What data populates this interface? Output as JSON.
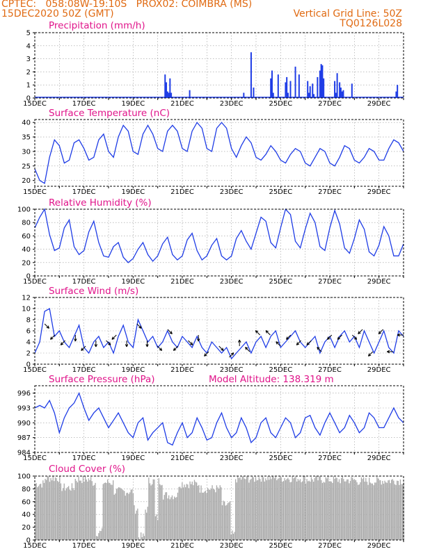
{
  "header": {
    "line1_left": "CPTEC:   058:08W-19:10S   PROX02: COIMBRA (MS)",
    "line2_left": "15DEC2020 50Z (GMT)",
    "line2_right": "Vertical Grid Line: 50Z",
    "line3_right": "TQ0126L028"
  },
  "colors": {
    "header": "#e06a12",
    "title": "#e0148a",
    "line": "#1e3ce6",
    "bars": "#1e3ce6",
    "cloud": "#a9a9a9"
  },
  "chart_data": [
    {
      "id": "precip",
      "type": "bar",
      "title": "Precipitation (mm/h)",
      "ylim": [
        0,
        5
      ],
      "yticks": [
        "0",
        "1",
        "2",
        "3",
        "4",
        "5"
      ],
      "xticks": [
        "15DEC",
        "17DEC",
        "19DEC",
        "21DEC",
        "23DEC",
        "25DEC",
        "27DEC",
        "29DEC"
      ],
      "x_days": [
        5.3,
        5.35,
        5.4,
        5.45,
        5.5,
        5.55,
        6.3,
        8.5,
        8.8,
        8.9,
        9.6,
        9.65,
        9.7,
        9.9,
        10.2,
        10.25,
        10.3,
        10.4,
        10.6,
        10.75,
        11.1,
        11.15,
        11.2,
        11.3,
        11.35,
        11.5,
        11.6,
        11.65,
        11.7,
        11.75,
        12.2,
        12.25,
        12.3,
        12.4,
        12.45,
        12.5,
        12.55,
        12.9,
        14.7,
        14.75
      ],
      "values": [
        1.8,
        1.2,
        0.5,
        0.4,
        1.5,
        0.4,
        0.6,
        0.4,
        3.5,
        0.8,
        1.5,
        2.1,
        0.4,
        1.8,
        1.2,
        1.6,
        0.4,
        1.3,
        2.4,
        1.8,
        1.3,
        0.4,
        0.9,
        1.1,
        0.3,
        1.6,
        2.1,
        2.6,
        2.5,
        1.5,
        1.3,
        0.4,
        1.9,
        1.2,
        0.8,
        0.5,
        0.6,
        1.1,
        0.5,
        1.0
      ]
    },
    {
      "id": "temp",
      "type": "line",
      "title": "Surface Temperature (nC)",
      "ylim": [
        18,
        41
      ],
      "yticks": [
        "20",
        "25",
        "30",
        "35",
        "40"
      ],
      "xticks": [
        "15DEC",
        "17DEC",
        "19DEC",
        "21DEC",
        "23DEC",
        "25DEC",
        "27DEC",
        "29DEC"
      ],
      "x_days": [
        0,
        0.2,
        0.4,
        0.6,
        0.8,
        1.0,
        1.2,
        1.4,
        1.6,
        1.8,
        2.0,
        2.2,
        2.4,
        2.6,
        2.8,
        3.0,
        3.2,
        3.4,
        3.6,
        3.8,
        4.0,
        4.2,
        4.4,
        4.6,
        4.8,
        5.0,
        5.2,
        5.4,
        5.6,
        5.8,
        6.0,
        6.2,
        6.4,
        6.6,
        6.8,
        7.0,
        7.2,
        7.4,
        7.6,
        7.8,
        8.0,
        8.2,
        8.4,
        8.6,
        8.8,
        9.0,
        9.2,
        9.4,
        9.6,
        9.8,
        10.0,
        10.2,
        10.4,
        10.6,
        10.8,
        11.0,
        11.2,
        11.4,
        11.6,
        11.8,
        12.0,
        12.2,
        12.4,
        12.6,
        12.8,
        13.0,
        13.2,
        13.4,
        13.6,
        13.8,
        14.0,
        14.2,
        14.4,
        14.6,
        14.8,
        15.0
      ],
      "values": [
        24,
        20,
        19,
        28,
        34,
        32,
        26,
        27,
        33,
        34,
        31,
        27,
        28,
        34,
        36,
        30,
        28,
        35,
        39,
        37,
        30,
        29,
        36,
        39,
        36,
        31,
        30,
        37,
        39,
        37,
        31,
        30,
        37,
        40,
        38,
        31,
        30,
        38,
        40,
        38,
        31,
        28,
        32,
        35,
        33,
        28,
        27,
        29,
        32,
        30,
        27,
        26,
        29,
        31,
        30,
        26,
        25,
        28,
        31,
        30,
        26,
        25,
        28,
        32,
        31,
        27,
        26,
        28,
        31,
        30,
        27,
        27,
        31,
        34,
        33,
        30
      ],
      "hours_per_step": 4.8
    },
    {
      "id": "rh",
      "type": "line",
      "title": "Relative Humidity (%)",
      "ylim": [
        0,
        100
      ],
      "yticks": [
        "0",
        "20",
        "40",
        "60",
        "80",
        "100"
      ],
      "xticks": [
        "15DEC",
        "17DEC",
        "19DEC",
        "21DEC",
        "23DEC",
        "25DEC",
        "27DEC",
        "29DEC"
      ],
      "x_days": [
        0,
        0.2,
        0.4,
        0.6,
        0.8,
        1.0,
        1.2,
        1.4,
        1.6,
        1.8,
        2.0,
        2.2,
        2.4,
        2.6,
        2.8,
        3.0,
        3.2,
        3.4,
        3.6,
        3.8,
        4.0,
        4.2,
        4.4,
        4.6,
        4.8,
        5.0,
        5.2,
        5.4,
        5.6,
        5.8,
        6.0,
        6.2,
        6.4,
        6.6,
        6.8,
        7.0,
        7.2,
        7.4,
        7.6,
        7.8,
        8.0,
        8.2,
        8.4,
        8.6,
        8.8,
        9.0,
        9.2,
        9.4,
        9.6,
        9.8,
        10.0,
        10.2,
        10.4,
        10.6,
        10.8,
        11.0,
        11.2,
        11.4,
        11.6,
        11.8,
        12.0,
        12.2,
        12.4,
        12.6,
        12.8,
        13.0,
        13.2,
        13.4,
        13.6,
        13.8,
        14.0,
        14.2,
        14.4,
        14.6,
        14.8,
        15.0
      ],
      "values": [
        72,
        88,
        100,
        62,
        38,
        42,
        72,
        84,
        44,
        32,
        38,
        66,
        82,
        50,
        30,
        28,
        44,
        50,
        28,
        20,
        26,
        40,
        50,
        32,
        22,
        30,
        48,
        58,
        32,
        24,
        30,
        54,
        64,
        38,
        24,
        30,
        46,
        56,
        30,
        24,
        30,
        56,
        68,
        52,
        40,
        64,
        88,
        82,
        50,
        42,
        72,
        100,
        92,
        52,
        42,
        70,
        94,
        80,
        44,
        38,
        72,
        98,
        78,
        42,
        34,
        56,
        84,
        70,
        36,
        30,
        46,
        74,
        60,
        30,
        30,
        48
      ]
    },
    {
      "id": "wind",
      "type": "line",
      "title": "Surface Wind (m/s)",
      "ylim": [
        0,
        12
      ],
      "yticks": [
        "0",
        "2",
        "4",
        "6",
        "8",
        "10",
        "12"
      ],
      "xticks": [
        "15DEC",
        "17DEC",
        "19DEC",
        "21DEC",
        "23DEC",
        "25DEC",
        "27DEC",
        "29DEC"
      ],
      "x_days": [
        0,
        0.2,
        0.4,
        0.6,
        0.8,
        1.0,
        1.2,
        1.4,
        1.6,
        1.8,
        2.0,
        2.2,
        2.4,
        2.6,
        2.8,
        3.0,
        3.2,
        3.4,
        3.6,
        3.8,
        4.0,
        4.2,
        4.4,
        4.6,
        4.8,
        5.0,
        5.2,
        5.4,
        5.6,
        5.8,
        6.0,
        6.2,
        6.4,
        6.6,
        6.8,
        7.0,
        7.2,
        7.4,
        7.6,
        7.8,
        8.0,
        8.2,
        8.4,
        8.6,
        8.8,
        9.0,
        9.2,
        9.4,
        9.6,
        9.8,
        10.0,
        10.2,
        10.4,
        10.6,
        10.8,
        11.0,
        11.2,
        11.4,
        11.6,
        11.8,
        12.0,
        12.2,
        12.4,
        12.6,
        12.8,
        13.0,
        13.2,
        13.4,
        13.6,
        13.8,
        14.0,
        14.2,
        14.4,
        14.6,
        14.8,
        15.0
      ],
      "values": [
        2,
        4,
        9.5,
        10,
        5,
        6,
        4,
        3,
        5,
        7,
        3,
        2,
        4,
        5,
        3,
        4,
        2,
        5,
        7,
        4,
        3,
        8,
        6,
        4,
        5,
        3,
        4,
        6,
        4,
        3,
        5,
        4,
        3,
        5,
        3,
        2,
        4,
        3,
        2,
        3,
        1,
        2,
        3,
        4,
        2,
        4,
        5,
        3,
        5,
        6,
        3,
        4,
        5,
        6,
        4,
        3,
        4,
        5,
        2,
        4,
        5,
        3,
        5,
        6,
        4,
        5,
        3,
        6,
        4,
        2,
        4,
        6,
        3,
        2,
        6,
        5
      ],
      "arrow_dirs": [
        "SE",
        "SW",
        "SW",
        "S",
        "SW",
        "S",
        "SE",
        "SW",
        "S",
        "SE",
        "S",
        "SE",
        "SE",
        "SW",
        "SE",
        "S",
        "SW",
        "SE",
        "NE",
        "N",
        "NW",
        "NW",
        "NW",
        "NW",
        "SW",
        "SW",
        "SW",
        "NW",
        "SW",
        "SW",
        "SE",
        "SW",
        "SW",
        "SW",
        "W",
        "W"
      ]
    },
    {
      "id": "pres",
      "type": "line",
      "title": "Surface Pressure (hPa)",
      "subtitle": "Model Altitude: 138.319 m",
      "ylim": [
        984,
        997.5
      ],
      "yticks": [
        "984",
        "987",
        "990",
        "993",
        "996"
      ],
      "xticks": [
        "15DEC",
        "17DEC",
        "19DEC",
        "21DEC",
        "23DEC",
        "25DEC",
        "27DEC",
        "29DEC"
      ],
      "x_days": [
        0,
        0.2,
        0.4,
        0.6,
        0.8,
        1.0,
        1.2,
        1.4,
        1.6,
        1.8,
        2.0,
        2.2,
        2.4,
        2.6,
        2.8,
        3.0,
        3.2,
        3.4,
        3.6,
        3.8,
        4.0,
        4.2,
        4.4,
        4.6,
        4.8,
        5.0,
        5.2,
        5.4,
        5.6,
        5.8,
        6.0,
        6.2,
        6.4,
        6.6,
        6.8,
        7.0,
        7.2,
        7.4,
        7.6,
        7.8,
        8.0,
        8.2,
        8.4,
        8.6,
        8.8,
        9.0,
        9.2,
        9.4,
        9.6,
        9.8,
        10.0,
        10.2,
        10.4,
        10.6,
        10.8,
        11.0,
        11.2,
        11.4,
        11.6,
        11.8,
        12.0,
        12.2,
        12.4,
        12.6,
        12.8,
        13.0,
        13.2,
        13.4,
        13.6,
        13.8,
        14.0,
        14.2,
        14.4,
        14.6,
        14.8,
        15.0
      ],
      "values": [
        993,
        993.5,
        993,
        994.5,
        992,
        988,
        991,
        993,
        994,
        996,
        993,
        990.5,
        992,
        993,
        991,
        989,
        990.5,
        992,
        990,
        988,
        987,
        990,
        991,
        986.5,
        988,
        989,
        990,
        986,
        985.5,
        988,
        990,
        987,
        988,
        991,
        989,
        986.5,
        987,
        990,
        992,
        989,
        987,
        988,
        991,
        989,
        986,
        987,
        990,
        991,
        988,
        987,
        989,
        991,
        990,
        987,
        988,
        991,
        991.5,
        989,
        987.5,
        990,
        992,
        990,
        988,
        989,
        991.5,
        990,
        988,
        989,
        992,
        991,
        989,
        989,
        991,
        993,
        991,
        990
      ]
    },
    {
      "id": "cloud",
      "type": "bar",
      "title": "Cloud Cover (%)",
      "ylim": [
        0,
        100
      ],
      "yticks": [
        "0",
        "20",
        "40",
        "60",
        "80",
        "100"
      ],
      "xticks": [
        "15DEC",
        "17DEC",
        "19DEC",
        "21DEC",
        "23DEC",
        "25DEC",
        "27DEC",
        "29DEC"
      ],
      "segments_days": [
        [
          0,
          0.4,
          88
        ],
        [
          0.4,
          1.0,
          97
        ],
        [
          1.0,
          1.6,
          82
        ],
        [
          1.6,
          2.3,
          95
        ],
        [
          2.3,
          3.2,
          90
        ],
        [
          3.2,
          4.0,
          76
        ],
        [
          4.0,
          4.6,
          48
        ],
        [
          4.6,
          5.2,
          92
        ],
        [
          5.2,
          5.8,
          70
        ],
        [
          5.8,
          6.7,
          88
        ],
        [
          6.7,
          7.6,
          80
        ],
        [
          7.6,
          8.1,
          55
        ],
        [
          8.1,
          9.0,
          96
        ],
        [
          9.0,
          10.0,
          98
        ],
        [
          10.0,
          11.0,
          97
        ],
        [
          11.0,
          12.0,
          95
        ],
        [
          12.0,
          13.0,
          94
        ],
        [
          13.0,
          14.0,
          92
        ],
        [
          14.0,
          15.0,
          93
        ]
      ],
      "dips_days": [
        [
          2.45,
          2.75,
          12
        ],
        [
          4.2,
          4.45,
          5
        ],
        [
          7.95,
          8.15,
          8
        ],
        [
          4.85,
          5.0,
          35
        ]
      ]
    }
  ]
}
